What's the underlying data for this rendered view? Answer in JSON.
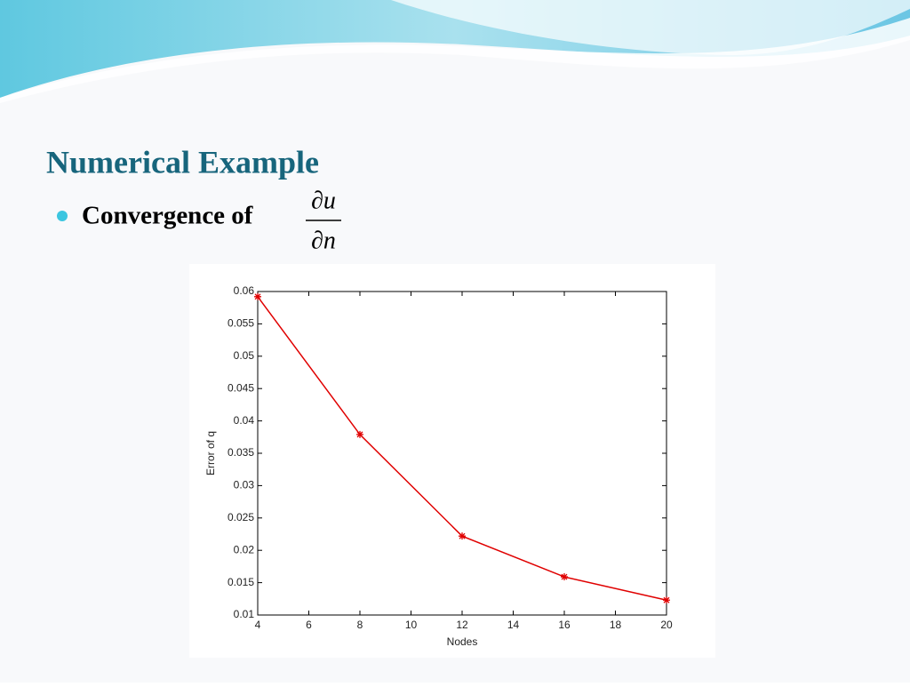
{
  "slide": {
    "title": "Numerical Example",
    "bullet": "Convergence of",
    "fraction": {
      "numerator": "∂u",
      "denominator": "∂n"
    }
  },
  "chart_data": {
    "type": "line",
    "xlabel": "Nodes",
    "ylabel": "Error of q",
    "x": [
      4,
      8,
      12,
      16,
      20
    ],
    "series": [
      {
        "name": "Error of q",
        "color": "#e00000",
        "values": [
          0.0592,
          0.0379,
          0.0222,
          0.0159,
          0.0123
        ]
      }
    ],
    "xlim": [
      4,
      20
    ],
    "xticks": [
      4,
      6,
      8,
      10,
      12,
      14,
      16,
      18,
      20
    ],
    "ylim": [
      0.01,
      0.06
    ],
    "yticks": [
      0.01,
      0.015,
      0.02,
      0.025,
      0.03,
      0.035,
      0.04,
      0.045,
      0.05,
      0.055,
      0.06
    ]
  }
}
